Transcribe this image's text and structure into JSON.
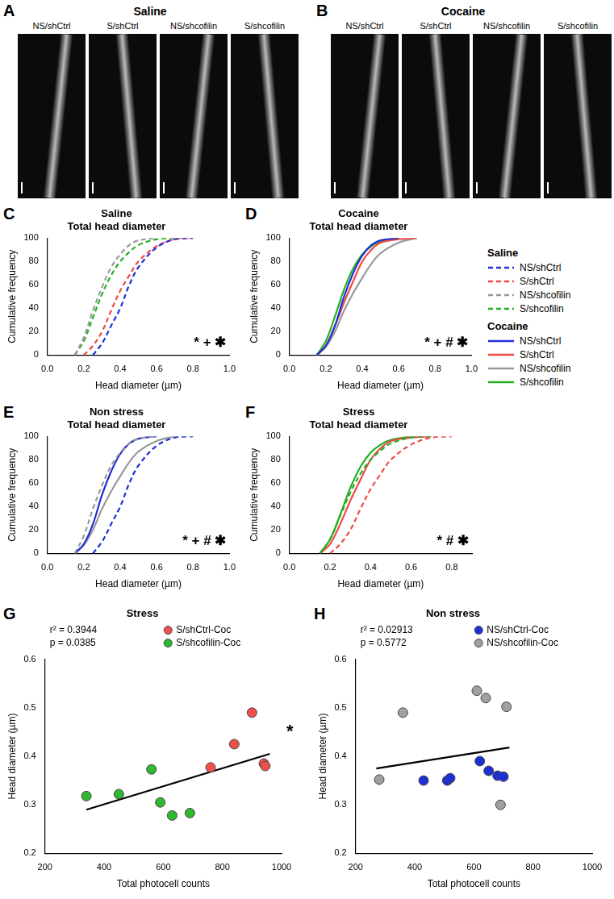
{
  "image_panels": [
    {
      "panel": "A",
      "title": "Saline",
      "labels": [
        "NS/shCtrl",
        "S/shCtrl",
        "NS/shcofilin",
        "S/shcofilin"
      ]
    },
    {
      "panel": "B",
      "title": "Cocaine",
      "labels": [
        "NS/shCtrl",
        "S/shCtrl",
        "NS/shcofilin",
        "S/shcofilin"
      ]
    }
  ],
  "chart_data": [
    {
      "panel": "C",
      "type": "line",
      "title": "Saline",
      "subtitle": "Total head diameter",
      "x_label": "Head diameter (µm)",
      "y_label": "Cumulative frequency",
      "xlim": [
        0,
        1
      ],
      "xticks": [
        {
          "value": 0,
          "label": "0.0"
        },
        0.2,
        0.4,
        0.6,
        0.8,
        {
          "value": 1,
          "label": "1.0"
        }
      ],
      "ylim": [
        0,
        100
      ],
      "yticks": [
        0,
        20,
        40,
        60,
        80,
        100
      ],
      "grid": false,
      "annotations": [
        "* + ✱"
      ],
      "series": [
        {
          "name": "NS/shCtrl",
          "color": "#1f2fd6",
          "line_style": "dashed",
          "x": [
            0.25,
            0.3,
            0.35,
            0.4,
            0.45,
            0.5,
            0.6,
            0.7,
            0.8
          ],
          "values": [
            0,
            10,
            25,
            40,
            60,
            75,
            92,
            99,
            100
          ]
        },
        {
          "name": "S/shCtrl",
          "color": "#f04848",
          "line_style": "dashed",
          "x": [
            0.2,
            0.25,
            0.3,
            0.35,
            0.4,
            0.45,
            0.5,
            0.6,
            0.7,
            0.8
          ],
          "values": [
            0,
            8,
            20,
            38,
            55,
            68,
            80,
            93,
            99,
            100
          ]
        },
        {
          "name": "NS/shcofilin",
          "color": "#999999",
          "line_style": "dashed",
          "x": [
            0.15,
            0.2,
            0.25,
            0.3,
            0.35,
            0.4,
            0.45,
            0.5,
            0.6
          ],
          "values": [
            0,
            15,
            38,
            58,
            75,
            86,
            94,
            98,
            100
          ]
        },
        {
          "name": "S/shcofilin",
          "color": "#22b022",
          "line_style": "dashed",
          "x": [
            0.15,
            0.2,
            0.25,
            0.3,
            0.35,
            0.4,
            0.45,
            0.5,
            0.6,
            0.7
          ],
          "values": [
            0,
            12,
            32,
            52,
            68,
            80,
            88,
            94,
            99,
            100
          ]
        }
      ]
    },
    {
      "panel": "D",
      "type": "line",
      "title": "Cocaine",
      "subtitle": "Total head diameter",
      "x_label": "Head diameter (µm)",
      "y_label": "Cumulative frequency",
      "xlim": [
        0,
        1
      ],
      "xticks": [
        {
          "value": 0,
          "label": "0.0"
        },
        0.2,
        0.4,
        0.6,
        0.8,
        {
          "value": 1,
          "label": "1.0"
        }
      ],
      "ylim": [
        0,
        100
      ],
      "yticks": [
        0,
        20,
        40,
        60,
        80,
        100
      ],
      "grid": false,
      "annotations": [
        "* + # ✱"
      ],
      "series": [
        {
          "name": "NS/shCtrl",
          "color": "#1f2fd6",
          "line_style": "solid",
          "x": [
            0.15,
            0.2,
            0.25,
            0.3,
            0.35,
            0.4,
            0.45,
            0.5,
            0.6
          ],
          "values": [
            0,
            8,
            25,
            50,
            70,
            85,
            94,
            98,
            100
          ]
        },
        {
          "name": "S/shCtrl",
          "color": "#f04848",
          "line_style": "solid",
          "x": [
            0.15,
            0.2,
            0.25,
            0.3,
            0.35,
            0.4,
            0.45,
            0.5,
            0.6,
            0.7
          ],
          "values": [
            0,
            8,
            25,
            45,
            63,
            80,
            90,
            96,
            99,
            100
          ]
        },
        {
          "name": "NS/shcofilin",
          "color": "#999999",
          "line_style": "solid",
          "x": [
            0.15,
            0.2,
            0.25,
            0.3,
            0.35,
            0.4,
            0.45,
            0.5,
            0.6,
            0.7
          ],
          "values": [
            0,
            7,
            20,
            38,
            53,
            66,
            78,
            87,
            96,
            100
          ]
        },
        {
          "name": "S/shcofilin",
          "color": "#22b022",
          "line_style": "solid",
          "x": [
            0.15,
            0.2,
            0.25,
            0.3,
            0.35,
            0.4,
            0.45,
            0.5,
            0.6
          ],
          "values": [
            0,
            12,
            33,
            56,
            74,
            86,
            93,
            97,
            100
          ]
        }
      ]
    },
    {
      "panel": "E",
      "type": "line",
      "title": "Non stress",
      "subtitle": "Total head diameter",
      "x_label": "Head diameter (µm)",
      "y_label": "Cumulative frequency",
      "xlim": [
        0,
        1
      ],
      "xticks": [
        {
          "value": 0,
          "label": "0.0"
        },
        0.2,
        0.4,
        0.6,
        0.8,
        {
          "value": 1,
          "label": "1.0"
        }
      ],
      "ylim": [
        0,
        100
      ],
      "yticks": [
        0,
        20,
        40,
        60,
        80,
        100
      ],
      "grid": false,
      "annotations": [
        "* + # ✱"
      ],
      "series": [
        {
          "color": "#1f2fd6",
          "line_style": "dashed",
          "x": [
            0.25,
            0.3,
            0.35,
            0.4,
            0.45,
            0.5,
            0.6,
            0.7,
            0.8
          ],
          "values": [
            0,
            10,
            25,
            40,
            60,
            75,
            92,
            99,
            100
          ]
        },
        {
          "color": "#999999",
          "line_style": "dashed",
          "x": [
            0.15,
            0.2,
            0.25,
            0.3,
            0.35,
            0.4,
            0.45,
            0.5,
            0.6
          ],
          "values": [
            0,
            15,
            38,
            58,
            75,
            86,
            94,
            98,
            100
          ]
        },
        {
          "color": "#1f2fd6",
          "line_style": "solid",
          "x": [
            0.15,
            0.2,
            0.25,
            0.3,
            0.35,
            0.4,
            0.45,
            0.5,
            0.6
          ],
          "values": [
            0,
            8,
            25,
            50,
            70,
            85,
            94,
            98,
            100
          ]
        },
        {
          "color": "#999999",
          "line_style": "solid",
          "x": [
            0.15,
            0.2,
            0.25,
            0.3,
            0.35,
            0.4,
            0.45,
            0.5,
            0.6,
            0.7
          ],
          "values": [
            0,
            7,
            20,
            38,
            53,
            66,
            78,
            87,
            96,
            100
          ]
        }
      ]
    },
    {
      "panel": "F",
      "type": "line",
      "title": "Stress",
      "subtitle": "Total head diameter",
      "x_label": "Head diameter (µm)",
      "y_label": "Cumulative frequency",
      "xlim": [
        0,
        0.9
      ],
      "xticks": [
        {
          "value": 0,
          "label": "0.0"
        },
        0.2,
        0.4,
        0.6,
        0.8
      ],
      "ylim": [
        0,
        100
      ],
      "yticks": [
        0,
        20,
        40,
        60,
        80,
        100
      ],
      "grid": false,
      "annotations": [
        "* # ✱"
      ],
      "series": [
        {
          "color": "#f04848",
          "line_style": "dashed",
          "x": [
            0.2,
            0.25,
            0.3,
            0.35,
            0.4,
            0.45,
            0.5,
            0.6,
            0.7,
            0.8
          ],
          "values": [
            0,
            8,
            20,
            38,
            55,
            68,
            80,
            93,
            99,
            100
          ]
        },
        {
          "color": "#22b022",
          "line_style": "dashed",
          "x": [
            0.15,
            0.2,
            0.25,
            0.3,
            0.35,
            0.4,
            0.45,
            0.5,
            0.6,
            0.7
          ],
          "values": [
            0,
            12,
            32,
            52,
            68,
            80,
            88,
            94,
            99,
            100
          ]
        },
        {
          "color": "#f04848",
          "line_style": "solid",
          "x": [
            0.15,
            0.2,
            0.25,
            0.3,
            0.35,
            0.4,
            0.45,
            0.5,
            0.6,
            0.7
          ],
          "values": [
            0,
            8,
            25,
            45,
            63,
            80,
            90,
            96,
            99,
            100
          ]
        },
        {
          "color": "#22b022",
          "line_style": "solid",
          "x": [
            0.15,
            0.2,
            0.25,
            0.3,
            0.35,
            0.4,
            0.45,
            0.5,
            0.6
          ],
          "values": [
            0,
            12,
            33,
            56,
            74,
            86,
            93,
            97,
            100
          ]
        }
      ]
    },
    {
      "panel": "G",
      "type": "scatter",
      "title": "Stress",
      "x_label": "Total photocell counts",
      "y_label": "Head diameter (µm)",
      "xlim": [
        200,
        1000
      ],
      "xticks": [
        200,
        400,
        600,
        800,
        1000
      ],
      "ylim": [
        0.2,
        0.6
      ],
      "yticks": [
        0.2,
        0.3,
        0.4,
        0.5,
        0.6
      ],
      "grid": false,
      "annotations": [
        "r² = 0.3944",
        "p = 0.0385",
        "*"
      ],
      "series": [
        {
          "name": "S/shCtrl-Coc",
          "color": "#f0504a",
          "marker": "circle",
          "x": [
            760,
            840,
            900,
            940,
            945
          ],
          "values": [
            0.377,
            0.425,
            0.49,
            0.385,
            0.38
          ]
        },
        {
          "name": "S/shcofilin-Coc",
          "color": "#2fb82f",
          "marker": "circle",
          "x": [
            340,
            450,
            560,
            590,
            630,
            690
          ],
          "values": [
            0.318,
            0.322,
            0.373,
            0.305,
            0.278,
            0.283
          ]
        },
        {
          "type": "line",
          "color": "#000000",
          "x": [
            340,
            960
          ],
          "values": [
            0.29,
            0.405
          ]
        }
      ]
    },
    {
      "panel": "H",
      "type": "scatter",
      "title": "Non stress",
      "x_label": "Total photocell counts",
      "y_label": "Head diameter (µm)",
      "xlim": [
        200,
        1000
      ],
      "xticks": [
        200,
        400,
        600,
        800,
        1000
      ],
      "ylim": [
        0.2,
        0.6
      ],
      "yticks": [
        0.2,
        0.3,
        0.4,
        0.5,
        0.6
      ],
      "grid": false,
      "annotations": [
        "r² = 0.02913",
        "p = 0.5772"
      ],
      "series": [
        {
          "name": "NS/shCtrl-Coc",
          "color": "#1f2fd6",
          "marker": "circle",
          "x": [
            430,
            510,
            520,
            620,
            650,
            680,
            700
          ],
          "values": [
            0.35,
            0.35,
            0.355,
            0.39,
            0.37,
            0.36,
            0.358
          ]
        },
        {
          "name": "NS/shcofilin-Coc",
          "color": "#a0a0a0",
          "marker": "circle",
          "x": [
            280,
            360,
            610,
            640,
            690,
            710
          ],
          "values": [
            0.352,
            0.49,
            0.535,
            0.52,
            0.3,
            0.502
          ]
        },
        {
          "type": "line",
          "color": "#000000",
          "x": [
            270,
            720
          ],
          "values": [
            0.375,
            0.418
          ]
        }
      ]
    }
  ]
}
